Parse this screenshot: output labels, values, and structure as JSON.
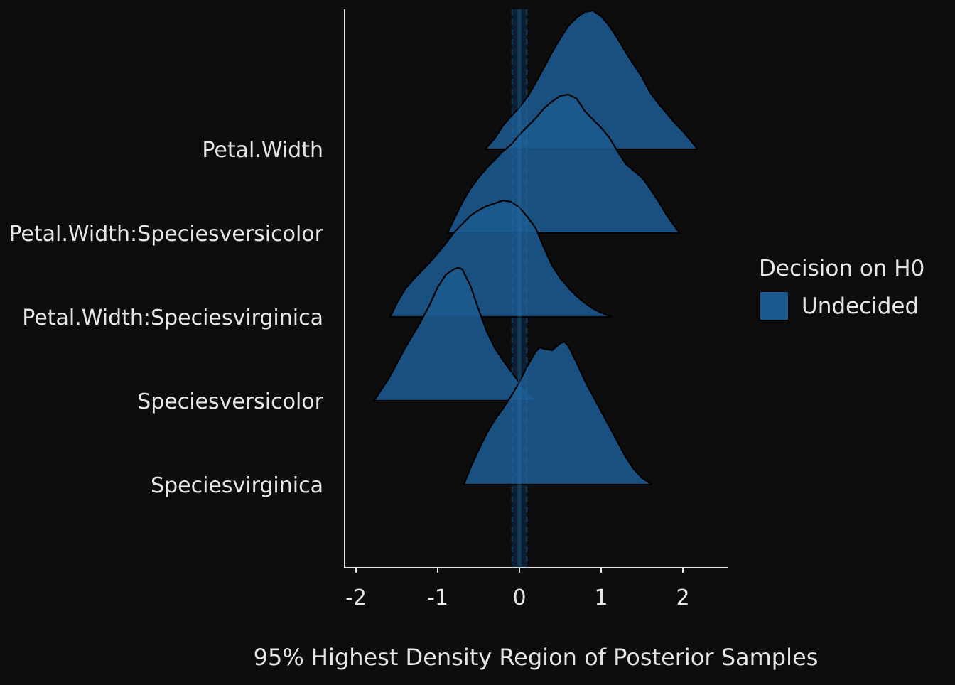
{
  "chart_data": {
    "type": "ridgeline",
    "title": "",
    "xlabel": "95% Highest Density Region of Posterior Samples",
    "ylabel": "",
    "xlim": [
      -2.3,
      2.55
    ],
    "xticks": [
      -2,
      -1,
      0,
      1,
      2
    ],
    "xtick_labels": [
      "-2",
      "-1",
      "0",
      "1",
      "2"
    ],
    "rope": {
      "center": 0,
      "low": -0.09,
      "high": 0.09
    },
    "categories": [
      "Petal.Width",
      "Petal.Width:Speciesversicolor",
      "Petal.Width:Speciesvirginica",
      "Speciesversicolor",
      "Speciesvirginica"
    ],
    "series": [
      {
        "name": "Petal.Width",
        "hdi": [
          -0.42,
          2.18
        ],
        "fill": "#1b5a8f",
        "x": [
          -0.42,
          -0.3,
          -0.2,
          -0.1,
          0.0,
          0.1,
          0.2,
          0.3,
          0.4,
          0.5,
          0.6,
          0.7,
          0.8,
          0.9,
          1.0,
          1.1,
          1.2,
          1.3,
          1.4,
          1.5,
          1.6,
          1.7,
          1.8,
          1.9,
          2.0,
          2.1,
          2.18
        ],
        "density": [
          0.0,
          0.08,
          0.17,
          0.24,
          0.3,
          0.38,
          0.48,
          0.59,
          0.7,
          0.8,
          0.89,
          0.95,
          0.99,
          1.0,
          0.96,
          0.89,
          0.8,
          0.7,
          0.61,
          0.52,
          0.41,
          0.33,
          0.26,
          0.19,
          0.13,
          0.06,
          0.0
        ]
      },
      {
        "name": "Petal.Width:Speciesversicolor",
        "hdi": [
          -0.88,
          1.96
        ],
        "fill": "#1b5a8f",
        "x": [
          -0.88,
          -0.8,
          -0.7,
          -0.6,
          -0.5,
          -0.4,
          -0.3,
          -0.2,
          -0.1,
          0.0,
          0.1,
          0.2,
          0.3,
          0.4,
          0.5,
          0.6,
          0.7,
          0.8,
          0.9,
          1.0,
          1.1,
          1.2,
          1.3,
          1.4,
          1.5,
          1.6,
          1.7,
          1.8,
          1.96
        ],
        "density": [
          0.0,
          0.1,
          0.22,
          0.32,
          0.4,
          0.47,
          0.53,
          0.59,
          0.64,
          0.71,
          0.77,
          0.83,
          0.9,
          0.95,
          0.99,
          1.0,
          0.97,
          0.88,
          0.82,
          0.76,
          0.69,
          0.59,
          0.5,
          0.45,
          0.4,
          0.32,
          0.23,
          0.13,
          0.0
        ]
      },
      {
        "name": "Petal.Width:Speciesvirginica",
        "hdi": [
          -1.58,
          1.13
        ],
        "fill": "#1b5a8f",
        "x": [
          -1.58,
          -1.5,
          -1.4,
          -1.3,
          -1.2,
          -1.1,
          -1.0,
          -0.9,
          -0.8,
          -0.7,
          -0.6,
          -0.5,
          -0.4,
          -0.3,
          -0.2,
          -0.1,
          0.0,
          0.1,
          0.2,
          0.3,
          0.4,
          0.5,
          0.6,
          0.7,
          0.8,
          0.9,
          1.0,
          1.13
        ],
        "density": [
          0.0,
          0.1,
          0.2,
          0.27,
          0.33,
          0.39,
          0.46,
          0.53,
          0.61,
          0.67,
          0.73,
          0.77,
          0.8,
          0.82,
          0.84,
          0.83,
          0.79,
          0.72,
          0.64,
          0.5,
          0.37,
          0.28,
          0.21,
          0.15,
          0.1,
          0.06,
          0.03,
          0.0
        ]
      },
      {
        "name": "Speciesversicolor",
        "hdi": [
          -1.78,
          0.32
        ],
        "fill": "#1b5a8f",
        "x": [
          -1.78,
          -1.7,
          -1.6,
          -1.5,
          -1.4,
          -1.3,
          -1.2,
          -1.1,
          -1.0,
          -0.9,
          -0.8,
          -0.75,
          -0.7,
          -0.6,
          -0.5,
          -0.4,
          -0.3,
          -0.2,
          -0.1,
          0.0,
          0.1,
          0.2,
          0.32
        ],
        "density": [
          0.0,
          0.07,
          0.16,
          0.27,
          0.38,
          0.48,
          0.58,
          0.69,
          0.82,
          0.91,
          0.95,
          0.96,
          0.95,
          0.83,
          0.66,
          0.5,
          0.38,
          0.29,
          0.21,
          0.13,
          0.06,
          0.02,
          0.0
        ]
      },
      {
        "name": "Speciesvirginica",
        "hdi": [
          -0.68,
          1.62
        ],
        "fill": "#1b5a8f",
        "x": [
          -0.68,
          -0.6,
          -0.5,
          -0.4,
          -0.3,
          -0.2,
          -0.1,
          0.0,
          0.1,
          0.2,
          0.25,
          0.3,
          0.4,
          0.5,
          0.55,
          0.6,
          0.7,
          0.8,
          0.9,
          1.0,
          1.1,
          1.2,
          1.3,
          1.4,
          1.5,
          1.62
        ],
        "density": [
          0.0,
          0.12,
          0.25,
          0.37,
          0.47,
          0.55,
          0.64,
          0.74,
          0.86,
          0.96,
          0.99,
          0.98,
          0.97,
          1.02,
          1.03,
          1.0,
          0.88,
          0.75,
          0.64,
          0.53,
          0.42,
          0.31,
          0.2,
          0.11,
          0.05,
          0.0
        ]
      }
    ],
    "legend": {
      "title": "Decision on H0",
      "entries": [
        {
          "label": "Undecided",
          "color": "#1b5a8f"
        }
      ],
      "placement": "right"
    },
    "grid": false
  }
}
